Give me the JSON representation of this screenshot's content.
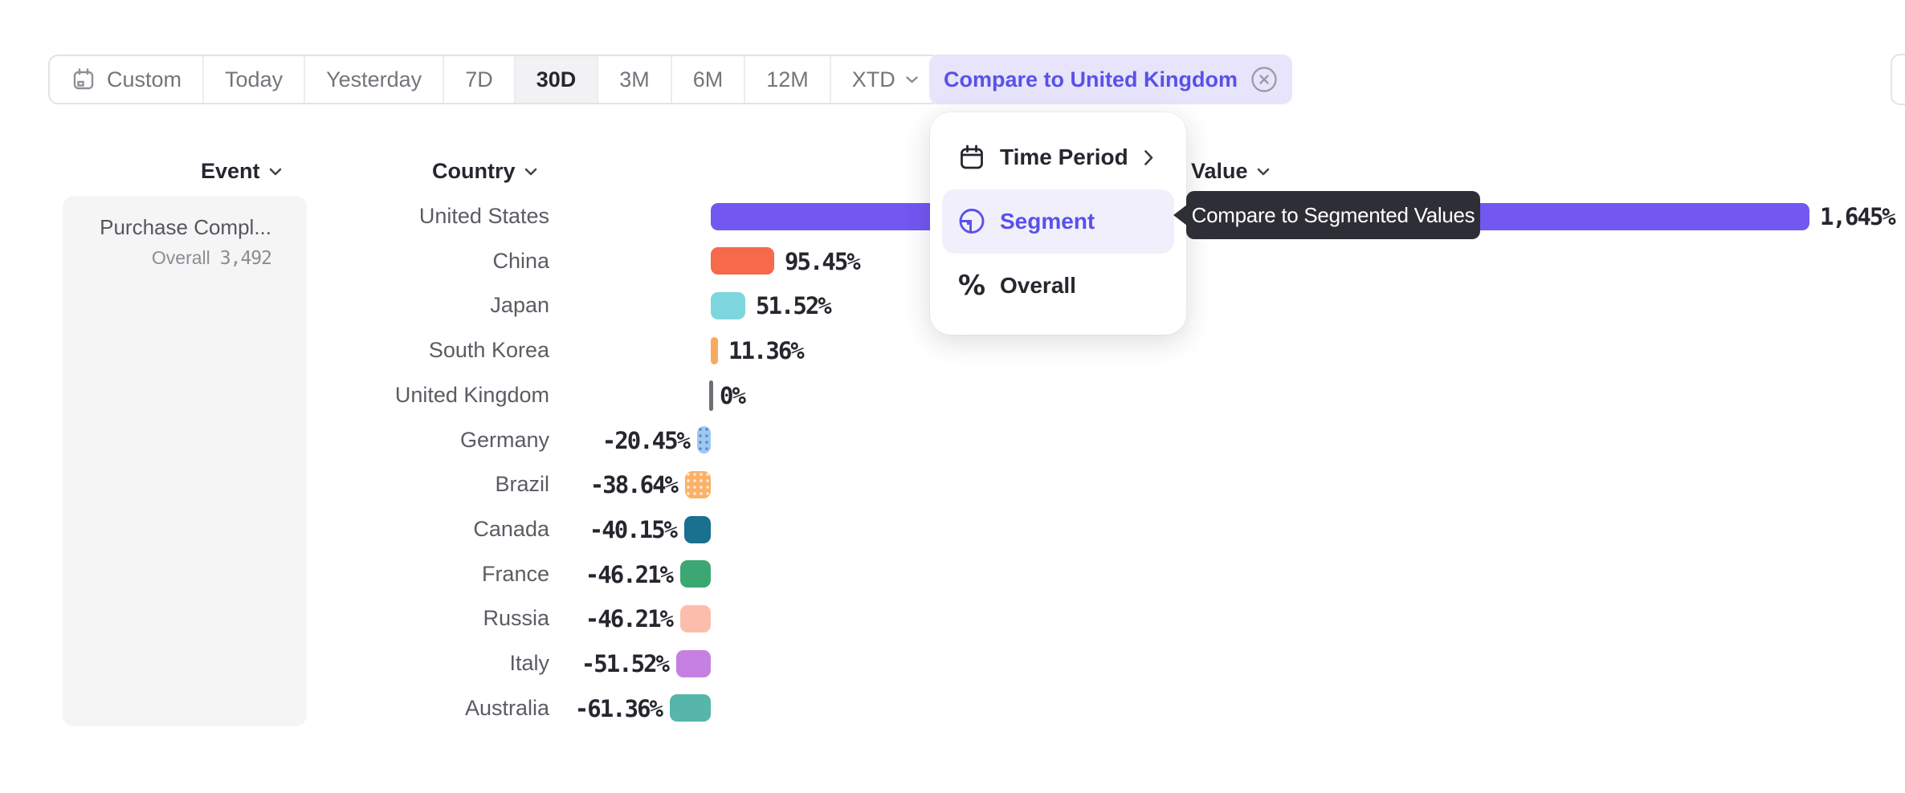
{
  "toolbar": {
    "items": [
      {
        "label": "Custom"
      },
      {
        "label": "Today"
      },
      {
        "label": "Yesterday"
      },
      {
        "label": "7D"
      },
      {
        "label": "30D",
        "selected": true
      },
      {
        "label": "3M"
      },
      {
        "label": "6M"
      },
      {
        "label": "12M"
      },
      {
        "label": "XTD"
      }
    ]
  },
  "compare_chip": {
    "label": "Compare to United Kingdom"
  },
  "columns": {
    "event": "Event",
    "country": "Country",
    "value": "Value"
  },
  "event_panel": {
    "event_name": "Purchase Compl...",
    "overall_label": "Overall",
    "overall_value": "3,492"
  },
  "menu": {
    "items": [
      {
        "label": "Time Period",
        "icon": "calendar-icon",
        "has_submenu": true
      },
      {
        "label": "Segment",
        "icon": "segment-icon",
        "selected": true
      },
      {
        "label": "Overall",
        "icon": "percent-icon"
      }
    ]
  },
  "tooltip": {
    "text": "Compare to Segmented Values"
  },
  "chart_data": {
    "type": "bar",
    "orientation": "horizontal",
    "value_unit": "percent",
    "categories": [
      "United States",
      "China",
      "Japan",
      "South Korea",
      "United Kingdom",
      "Germany",
      "Brazil",
      "Canada",
      "France",
      "Russia",
      "Italy",
      "Australia"
    ],
    "values": [
      1645,
      95.45,
      51.52,
      11.36,
      0,
      -20.45,
      -38.64,
      -40.15,
      -46.21,
      -46.21,
      -51.52,
      -61.36
    ],
    "labels": [
      "1,645%",
      "95.45%",
      "51.52%",
      "11.36%",
      "0%",
      "-20.45%",
      "-38.64%",
      "-40.15%",
      "-46.21%",
      "-46.21%",
      "-51.52%",
      "-61.36%"
    ],
    "colors": [
      "#7257F0",
      "#F6694B",
      "#7DD6DD",
      "#F9A95E",
      "#6E6E75",
      "#9CCAEF",
      "#FBB168",
      "#19718F",
      "#3BA873",
      "#FCBDAD",
      "#C680E2",
      "#55B6A9"
    ],
    "dot_texture": [
      null,
      null,
      null,
      null,
      null,
      "#6B7FD7",
      "rgba(255,255,255,0.75)",
      null,
      null,
      null,
      null,
      null
    ],
    "xlim": [
      -61.36,
      1645
    ],
    "grid": false,
    "legend": false
  },
  "style_colors": {
    "accent_purple": "#5851E9",
    "bar_purple": "#7257F0",
    "chip_bg": "#E7E4FB",
    "tooltip_bg": "#2E2E36",
    "panel_bg": "#F5F5F6"
  }
}
